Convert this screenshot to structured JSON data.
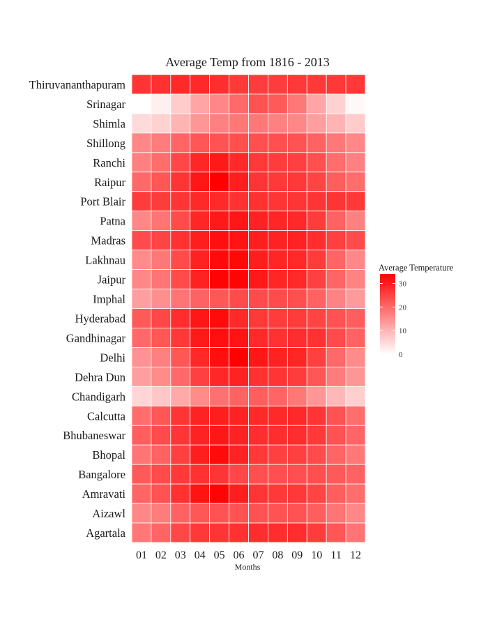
{
  "chart_data": {
    "type": "heatmap",
    "title": "Average Temp from 1816 - 2013",
    "xlabel": "Months",
    "ylabel": "",
    "x": [
      "01",
      "02",
      "03",
      "04",
      "05",
      "06",
      "07",
      "08",
      "09",
      "10",
      "11",
      "12"
    ],
    "y": [
      "Thiruvananthapuram",
      "Srinagar",
      "Shimla",
      "Shillong",
      "Ranchi",
      "Raipur",
      "Port Blair",
      "Patna",
      "Madras",
      "Lakhnau",
      "Jaipur",
      "Imphal",
      "Hyderabad",
      "Gandhinagar",
      "Delhi",
      "Dehra Dun",
      "Chandigarh",
      "Calcutta",
      "Bhubaneswar",
      "Bhopal",
      "Bangalore",
      "Amravati",
      "Aizawl",
      "Agartala"
    ],
    "values": [
      [
        27,
        27.5,
        28.5,
        28.5,
        28,
        26.5,
        26,
        26,
        26.5,
        26.5,
        26.5,
        26.5
      ],
      [
        0,
        2,
        7,
        12,
        16,
        20,
        23,
        22,
        18,
        12,
        6,
        1
      ],
      [
        5,
        6,
        10,
        14,
        17,
        18,
        18,
        17,
        16,
        13,
        10,
        7
      ],
      [
        16,
        17.5,
        20.5,
        22.5,
        23,
        23.5,
        23.5,
        23.5,
        23,
        21,
        18,
        16
      ],
      [
        17,
        19.5,
        24.5,
        29,
        30.5,
        28.5,
        26.5,
        26,
        25.5,
        23.5,
        19.5,
        17
      ],
      [
        20,
        22.5,
        27,
        31,
        34,
        30,
        27,
        26.5,
        26.5,
        25,
        21.5,
        19.5
      ],
      [
        26,
        26,
        27,
        28.5,
        28.5,
        27.5,
        27.5,
        27,
        27,
        27,
        27,
        26.5
      ],
      [
        16,
        18.5,
        24,
        29,
        30.5,
        31,
        29.5,
        29,
        28.5,
        26,
        21,
        17
      ],
      [
        24,
        25,
        27.5,
        30,
        32,
        31.5,
        30,
        29.5,
        29.5,
        28,
        25.5,
        24
      ],
      [
        15.5,
        18,
        24,
        29.5,
        32.5,
        33,
        30,
        29,
        28.5,
        26,
        20.5,
        16
      ],
      [
        16,
        18.5,
        24,
        29.5,
        33.5,
        33.5,
        30.5,
        29,
        28.5,
        25.5,
        20.5,
        16.5
      ],
      [
        13,
        15,
        18.5,
        21,
        22.5,
        24,
        24,
        24,
        23.5,
        21,
        16.5,
        13.5
      ],
      [
        22,
        24.5,
        28,
        31,
        32.5,
        28.5,
        26.5,
        26,
        26,
        25,
        23,
        21.5
      ],
      [
        20,
        22.5,
        26.5,
        30.5,
        32,
        31.5,
        28.5,
        27.5,
        28,
        27.5,
        24,
        21
      ],
      [
        14.5,
        17,
        22.5,
        28.5,
        32,
        34,
        31,
        29.5,
        29,
        25.5,
        20,
        15.5
      ],
      [
        13,
        15.5,
        20,
        25.5,
        28.5,
        29.5,
        27.5,
        27,
        26,
        22.5,
        17.5,
        14
      ],
      [
        5.5,
        7.5,
        11.5,
        15.5,
        19,
        21,
        21.5,
        20.5,
        18,
        14,
        9.5,
        6.5
      ],
      [
        19.5,
        22.5,
        27,
        29.5,
        30,
        29.5,
        28.5,
        28.5,
        28.5,
        27,
        23,
        19.5
      ],
      [
        21.5,
        24,
        27,
        29.5,
        31,
        29.5,
        28,
        28,
        28,
        26.5,
        23,
        20.5
      ],
      [
        18.5,
        21,
        25.5,
        30,
        32.5,
        29.5,
        26.5,
        25.5,
        25.5,
        24,
        20.5,
        18
      ],
      [
        22,
        24,
        26.5,
        27.5,
        27,
        24.5,
        23.5,
        23.5,
        23.5,
        23.5,
        22,
        21
      ],
      [
        20.5,
        23,
        27.5,
        31.5,
        33.5,
        30,
        27,
        26.5,
        26.5,
        25,
        21.5,
        19.5
      ],
      [
        16,
        17.5,
        21,
        22.5,
        23,
        23,
        23,
        23,
        23,
        21.5,
        18.5,
        16
      ],
      [
        18,
        20.5,
        24.5,
        26.5,
        27,
        27.5,
        28,
        28,
        28,
        26,
        22.5,
        18.5
      ]
    ],
    "legend": {
      "title": "Average Temperature",
      "position": "right",
      "ticks": [
        0,
        10,
        20,
        30
      ],
      "min": 0,
      "max": 34
    },
    "color_low": "#ffffff",
    "color_high": "#ff0000"
  }
}
